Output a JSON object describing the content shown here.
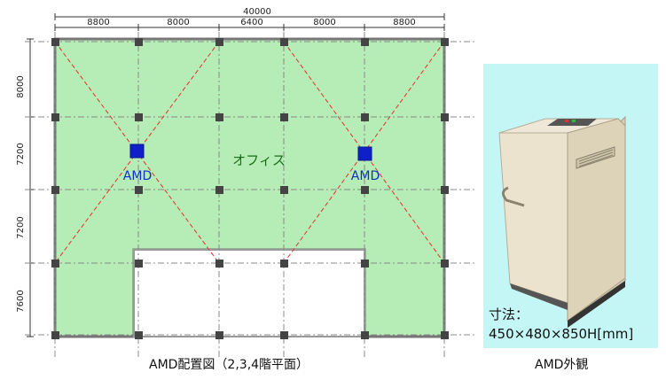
{
  "plan": {
    "overall_dimension": "40000",
    "top_dimensions": [
      "8800",
      "8000",
      "6400",
      "8000",
      "8800"
    ],
    "side_dimensions": [
      "8000",
      "7200",
      "7200",
      "7600"
    ],
    "room_label": "オフィス",
    "device_labels": [
      "AMD",
      "AMD"
    ],
    "colors": {
      "office_fill": "#b6ecb6",
      "outline": "#777777",
      "column": "#444444",
      "grid_line": "#888888",
      "diagonal": "#e83030",
      "device": "#1020c8",
      "label_text": "#1a6b1a",
      "device_text": "#1030c0"
    }
  },
  "photo": {
    "background": "#c4f6f6",
    "size_label": "寸法：",
    "size_value": "450×480×850H[mm]"
  },
  "captions": {
    "plan": "AMD配置図（2,3,4階平面）",
    "photo": "AMD外観"
  }
}
